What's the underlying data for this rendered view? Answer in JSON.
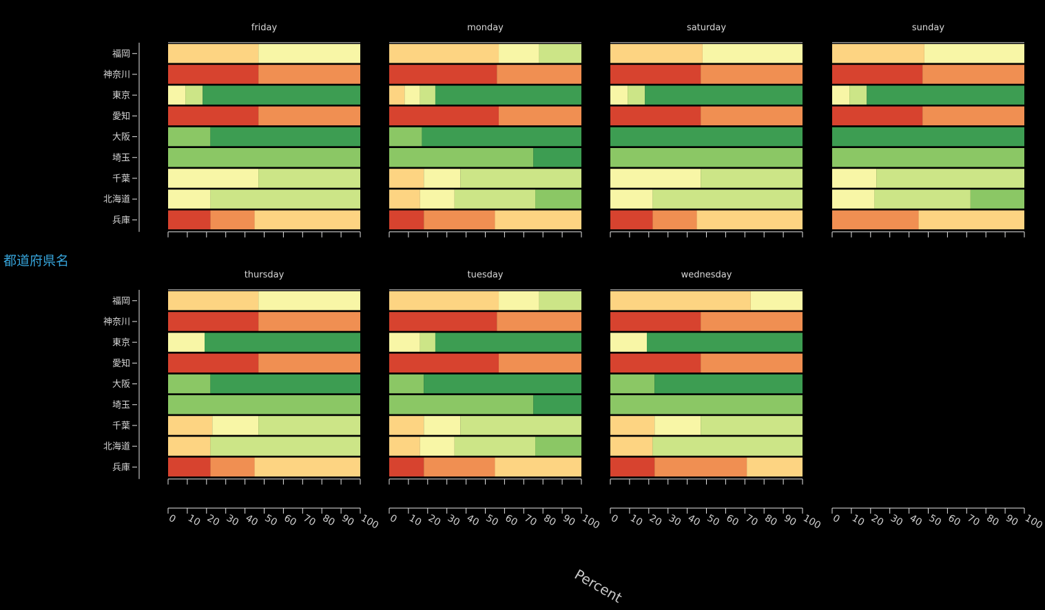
{
  "chart_data": {
    "type": "bar",
    "stacked": "normalized",
    "orientation": "horizontal",
    "ylabel": "都道府県名",
    "xlabel": "Percent",
    "xlim": [
      0,
      100
    ],
    "x_ticks": [
      "0",
      "10",
      "20",
      "30",
      "40",
      "50",
      "60",
      "70",
      "80",
      "90",
      "100"
    ],
    "categories": [
      "福岡",
      "神奈川",
      "東京",
      "愛知",
      "大阪",
      "埼玉",
      "千葉",
      "北海道",
      "兵庫"
    ],
    "color_scale": [
      "#d7432f",
      "#f08f52",
      "#fdd482",
      "#f8f6a6",
      "#cce587",
      "#8bc765",
      "#3d9d52"
    ],
    "facets": [
      {
        "title": "friday",
        "rows": [
          [
            [
              2,
              47
            ],
            [
              3,
              53
            ]
          ],
          [
            [
              0,
              47
            ],
            [
              1,
              53
            ]
          ],
          [
            [
              3,
              9
            ],
            [
              4,
              9
            ],
            [
              6,
              82
            ]
          ],
          [
            [
              0,
              47
            ],
            [
              1,
              53
            ]
          ],
          [
            [
              5,
              22
            ],
            [
              6,
              78
            ]
          ],
          [
            [
              5,
              100
            ]
          ],
          [
            [
              3,
              47
            ],
            [
              4,
              53
            ]
          ],
          [
            [
              3,
              22
            ],
            [
              4,
              78
            ]
          ],
          [
            [
              0,
              22
            ],
            [
              1,
              23
            ],
            [
              2,
              55
            ]
          ]
        ]
      },
      {
        "title": "monday",
        "rows": [
          [
            [
              2,
              57
            ],
            [
              3,
              21
            ],
            [
              4,
              22
            ]
          ],
          [
            [
              0,
              56
            ],
            [
              1,
              44
            ]
          ],
          [
            [
              2,
              8
            ],
            [
              3,
              8
            ],
            [
              4,
              8
            ],
            [
              6,
              76
            ]
          ],
          [
            [
              0,
              57
            ],
            [
              1,
              43
            ]
          ],
          [
            [
              5,
              17
            ],
            [
              6,
              83
            ]
          ],
          [
            [
              5,
              75
            ],
            [
              6,
              25
            ]
          ],
          [
            [
              2,
              18
            ],
            [
              3,
              19
            ],
            [
              4,
              63
            ]
          ],
          [
            [
              2,
              16
            ],
            [
              3,
              18
            ],
            [
              4,
              42
            ],
            [
              5,
              24
            ]
          ],
          [
            [
              0,
              18
            ],
            [
              1,
              37
            ],
            [
              2,
              45
            ]
          ]
        ]
      },
      {
        "title": "saturday",
        "rows": [
          [
            [
              2,
              48
            ],
            [
              3,
              52
            ]
          ],
          [
            [
              0,
              47
            ],
            [
              1,
              53
            ]
          ],
          [
            [
              3,
              9
            ],
            [
              4,
              9
            ],
            [
              6,
              82
            ]
          ],
          [
            [
              0,
              47
            ],
            [
              1,
              53
            ]
          ],
          [
            [
              6,
              100
            ]
          ],
          [
            [
              5,
              100
            ]
          ],
          [
            [
              3,
              47
            ],
            [
              4,
              53
            ]
          ],
          [
            [
              3,
              22
            ],
            [
              4,
              78
            ]
          ],
          [
            [
              0,
              22
            ],
            [
              1,
              23
            ],
            [
              2,
              55
            ]
          ]
        ]
      },
      {
        "title": "sunday",
        "rows": [
          [
            [
              2,
              48
            ],
            [
              3,
              52
            ]
          ],
          [
            [
              0,
              47
            ],
            [
              1,
              53
            ]
          ],
          [
            [
              3,
              9
            ],
            [
              4,
              9
            ],
            [
              6,
              82
            ]
          ],
          [
            [
              0,
              47
            ],
            [
              1,
              53
            ]
          ],
          [
            [
              6,
              100
            ]
          ],
          [
            [
              5,
              100
            ]
          ],
          [
            [
              3,
              23
            ],
            [
              4,
              77
            ]
          ],
          [
            [
              3,
              22
            ],
            [
              4,
              50
            ],
            [
              5,
              28
            ]
          ],
          [
            [
              1,
              45
            ],
            [
              2,
              55
            ]
          ]
        ]
      },
      {
        "title": "thursday",
        "rows": [
          [
            [
              2,
              47
            ],
            [
              3,
              53
            ]
          ],
          [
            [
              0,
              47
            ],
            [
              1,
              53
            ]
          ],
          [
            [
              3,
              19
            ],
            [
              6,
              81
            ]
          ],
          [
            [
              0,
              47
            ],
            [
              1,
              53
            ]
          ],
          [
            [
              5,
              22
            ],
            [
              6,
              78
            ]
          ],
          [
            [
              5,
              100
            ]
          ],
          [
            [
              2,
              23
            ],
            [
              3,
              24
            ],
            [
              4,
              53
            ]
          ],
          [
            [
              2,
              22
            ],
            [
              4,
              78
            ]
          ],
          [
            [
              0,
              22
            ],
            [
              1,
              23
            ],
            [
              2,
              55
            ]
          ]
        ]
      },
      {
        "title": "tuesday",
        "rows": [
          [
            [
              2,
              57
            ],
            [
              3,
              21
            ],
            [
              4,
              22
            ]
          ],
          [
            [
              0,
              56
            ],
            [
              1,
              44
            ]
          ],
          [
            [
              3,
              16
            ],
            [
              4,
              8
            ],
            [
              6,
              76
            ]
          ],
          [
            [
              0,
              57
            ],
            [
              1,
              43
            ]
          ],
          [
            [
              5,
              18
            ],
            [
              6,
              82
            ]
          ],
          [
            [
              5,
              75
            ],
            [
              6,
              25
            ]
          ],
          [
            [
              2,
              18
            ],
            [
              3,
              19
            ],
            [
              4,
              63
            ]
          ],
          [
            [
              2,
              16
            ],
            [
              3,
              18
            ],
            [
              4,
              42
            ],
            [
              5,
              24
            ]
          ],
          [
            [
              0,
              18
            ],
            [
              1,
              37
            ],
            [
              2,
              45
            ]
          ]
        ]
      },
      {
        "title": "wednesday",
        "rows": [
          [
            [
              2,
              73
            ],
            [
              3,
              27
            ]
          ],
          [
            [
              0,
              47
            ],
            [
              1,
              53
            ]
          ],
          [
            [
              3,
              19
            ],
            [
              6,
              81
            ]
          ],
          [
            [
              0,
              47
            ],
            [
              1,
              53
            ]
          ],
          [
            [
              5,
              23
            ],
            [
              6,
              77
            ]
          ],
          [
            [
              5,
              100
            ]
          ],
          [
            [
              2,
              23
            ],
            [
              3,
              24
            ],
            [
              4,
              53
            ]
          ],
          [
            [
              2,
              22
            ],
            [
              4,
              78
            ]
          ],
          [
            [
              0,
              23
            ],
            [
              1,
              48
            ],
            [
              2,
              29
            ]
          ]
        ]
      }
    ]
  }
}
